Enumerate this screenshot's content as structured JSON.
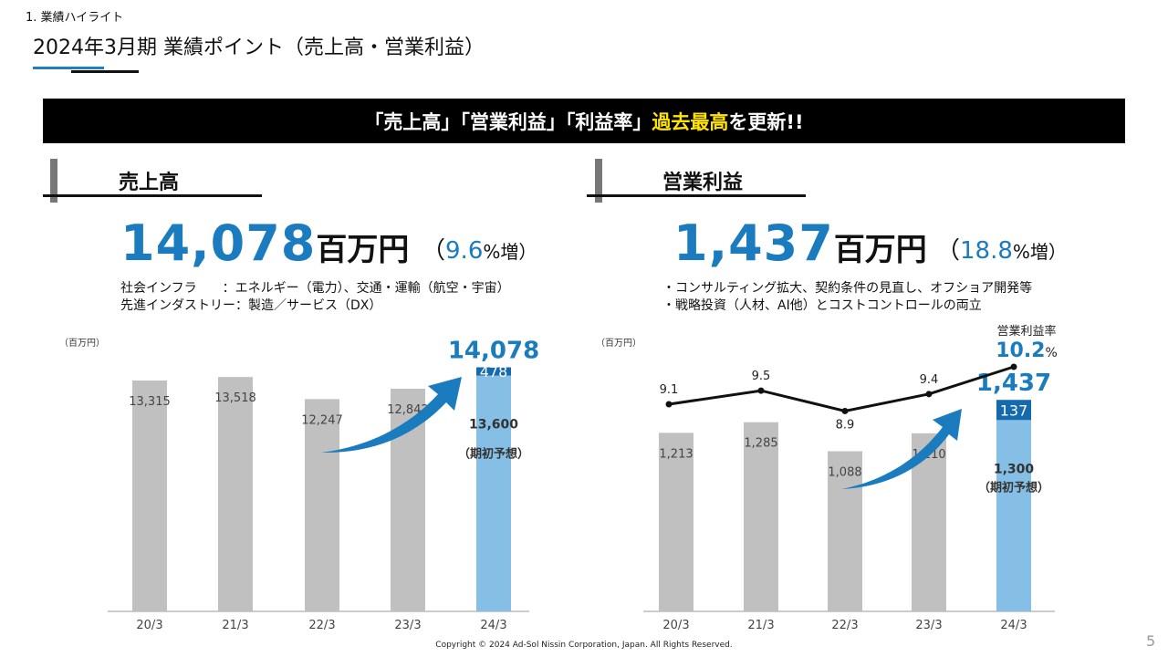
{
  "header": {
    "section": "1. 業績ハイライト",
    "title": "2024年3月期 業績ポイント（売上高・営業利益）"
  },
  "banner": {
    "prefix": "「売上高」「営業利益」「利益率」",
    "highlight": "過去最高",
    "suffix": "を更新!!"
  },
  "colors": {
    "accent": "#1a7bbf",
    "bar_gray": "#c0c0c0",
    "bar_light_blue": "#85bfe6",
    "bar_dark_blue": "#1569ad",
    "highlight_yellow": "#ffe400"
  },
  "left": {
    "heading": "売上高",
    "big_value": "14,078",
    "big_unit": "百万円",
    "growth_open": "（",
    "growth_value": "9.6",
    "growth_suffix": "%増）",
    "notes": "社会インフラ　　：エネルギー（電力）、交通・運輸（航空・宇宙）\n先進インダストリー：製造／サービス（DX）",
    "unit": "（百万円）"
  },
  "right": {
    "heading": "営業利益",
    "big_value": "1,437",
    "big_unit": "百万円",
    "growth_open": "（",
    "growth_value": "18.8",
    "growth_suffix": "%増）",
    "notes": "・コンサルティング拡大、契約条件の見直し、オフショア開発等\n・戦略投資（人材、AI他）とコストコントロールの両立",
    "unit": "（百万円）"
  },
  "chart_data": [
    {
      "type": "bar",
      "ylabel": "（百万円）",
      "categories": [
        "20/3",
        "21/3",
        "22/3",
        "23/3",
        "24/3"
      ],
      "values": [
        13315,
        13518,
        12247,
        12842,
        14078
      ],
      "value_labels": [
        "13,315",
        "13,518",
        "12,247",
        "12,842",
        "14,078"
      ],
      "forecast": {
        "value": 13600,
        "label": "13,600",
        "caption": "（期初予想）"
      },
      "excess": {
        "value": 478,
        "label": "478"
      },
      "grid": false
    },
    {
      "type": "bar",
      "ylabel": "（百万円）",
      "categories": [
        "20/3",
        "21/3",
        "22/3",
        "23/3",
        "24/3"
      ],
      "values": [
        1213,
        1285,
        1088,
        1210,
        1437
      ],
      "value_labels": [
        "1,213",
        "1,285",
        "1,088",
        "1,210",
        "1,437"
      ],
      "forecast": {
        "value": 1300,
        "label": "1,300",
        "caption": "（期初予想）"
      },
      "excess": {
        "value": 137,
        "label": "137"
      },
      "margin_series": {
        "name": "営業利益率",
        "type": "line",
        "values": [
          9.1,
          9.5,
          8.9,
          9.4,
          10.2
        ],
        "labels": [
          "9.1",
          "9.5",
          "8.9",
          "9.4",
          "10.2"
        ],
        "last_unit": "%"
      },
      "grid": false
    }
  ],
  "footer": {
    "copyright": "Copyright © 2024 Ad-Sol Nissin Corporation, Japan. All Rights Reserved.",
    "page": "5"
  }
}
